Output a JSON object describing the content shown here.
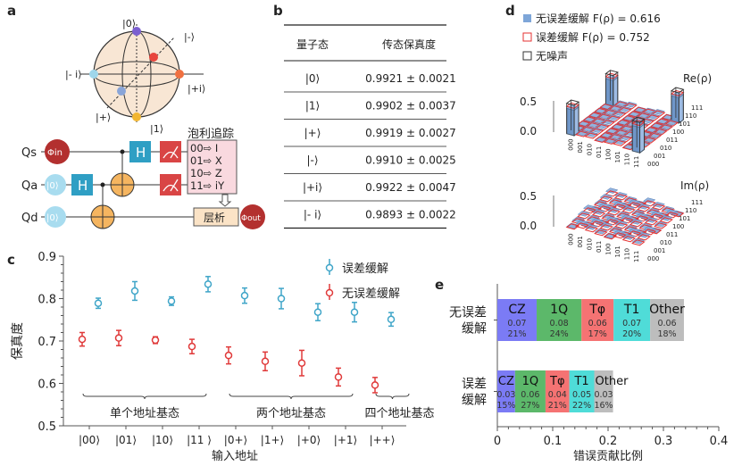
{
  "panels": {
    "a": "a",
    "b": "b",
    "c": "c",
    "d": "d",
    "e": "e"
  },
  "bloch": {
    "labels": {
      "zero": "|0⟩",
      "one": "|1⟩",
      "plus": "|+⟩",
      "minus": "|-⟩",
      "plus_i": "|+i⟩",
      "minus_i": "|- i⟩"
    },
    "colors": {
      "zero": "#7b5fd0",
      "one": "#f2b632",
      "plus": "#8aa5d8",
      "minus": "#e8453c",
      "plus_i": "#f07040",
      "minus_i": "#9fd6ea",
      "sphere": "#f8e6d4"
    }
  },
  "circuit": {
    "qubits": [
      "Qs",
      "Qa",
      "Qd"
    ],
    "phi_in": "Φin",
    "phi_out": "Φout",
    "ket0": "|0⟩",
    "hadamard": "H",
    "pauli_title": "泡利追踪",
    "pauli_rules": [
      "00⇨  I",
      "01⇨  X",
      "10⇨  Z",
      "11⇨  iY"
    ],
    "tomography": "层析",
    "colors": {
      "h": "#2f9fc4",
      "meas": "#d94545",
      "phi": "#b3302f",
      "ket": "#a8dcef",
      "cnot": "#f5b560",
      "pauli": "#f9d9df",
      "tomo": "#fbe3c6"
    }
  },
  "table": {
    "headers": [
      "量子态",
      "传态保真度"
    ],
    "rows": [
      [
        "|0⟩",
        "0.9921 ± 0.0021"
      ],
      [
        "|1⟩",
        "0.9902 ± 0.0037"
      ],
      [
        "|+⟩",
        "0.9919 ± 0.0027"
      ],
      [
        "|-⟩",
        "0.9910 ± 0.0025"
      ],
      [
        "|+i⟩",
        "0.9922 ± 0.0047"
      ],
      [
        "|- i⟩",
        "0.9893 ± 0.0022"
      ]
    ]
  },
  "density": {
    "legend": [
      "无误差缓解 F(ρ) = 0.616",
      "误差缓解  F(ρ) = 0.752",
      "无噪声"
    ],
    "re_label": "Re(ρ)",
    "im_label": "Im(ρ)",
    "zticks": [
      "0.5",
      "0.0"
    ],
    "basis": [
      "000",
      "001",
      "010",
      "011",
      "100",
      "101",
      "110",
      "111"
    ],
    "colors": {
      "unmitigated": "#7ea6d8",
      "mitigated": "#e53030",
      "ideal": "#333333"
    }
  },
  "chart_data": [
    {
      "type": "scatter",
      "ylabel": "保真度",
      "xlabel": "输入地址",
      "ylim": [
        0.5,
        0.9
      ],
      "yticks": [
        0.5,
        0.6,
        0.7,
        0.8,
        0.9
      ],
      "categories": [
        "|00⟩",
        "|01⟩",
        "|10⟩",
        "|11 ⟩",
        "|0+⟩",
        "|1+⟩",
        "|+0⟩",
        "|+1⟩",
        "|++⟩"
      ],
      "groups": [
        {
          "label": "单个地址基态",
          "range": [
            0,
            3
          ]
        },
        {
          "label": "两个地址基态",
          "range": [
            4,
            7
          ]
        },
        {
          "label": "四个地址基态",
          "range": [
            8,
            8
          ]
        }
      ],
      "series": [
        {
          "name": "误差缓解",
          "color": "#3fa5c8",
          "values": [
            0.789,
            0.818,
            0.794,
            0.834,
            0.807,
            0.8,
            0.768,
            0.768,
            0.751
          ],
          "errors": [
            0.012,
            0.022,
            0.01,
            0.018,
            0.018,
            0.024,
            0.02,
            0.023,
            0.016
          ]
        },
        {
          "name": "无误差缓解",
          "color": "#e03a3a",
          "values": [
            0.704,
            0.707,
            0.702,
            0.687,
            0.666,
            0.652,
            0.648,
            0.615,
            0.596
          ],
          "errors": [
            0.016,
            0.018,
            0.008,
            0.017,
            0.02,
            0.022,
            0.03,
            0.021,
            0.018
          ]
        }
      ]
    },
    {
      "type": "bar",
      "orientation": "horizontal",
      "stacked": true,
      "xlabel": "错误贡献比例",
      "xlim": [
        0,
        0.4
      ],
      "xticks": [
        "0",
        "0.1",
        "0.2",
        "0.3",
        "0.4"
      ],
      "categories": [
        "无误差缓解",
        "误差缓解"
      ],
      "segments": [
        "CZ",
        "1Q",
        "Tφ",
        "T1",
        "Other"
      ],
      "colors": [
        "#7b7bf5",
        "#5cb86a",
        "#f57373",
        "#4fdcd8",
        "#bdbdbd"
      ],
      "values": [
        [
          0.07,
          0.08,
          0.06,
          0.07,
          0.06
        ],
        [
          0.03,
          0.06,
          0.04,
          0.05,
          0.03
        ]
      ],
      "values_exact": [
        [
          0.071,
          0.081,
          0.058,
          0.066,
          0.061
        ],
        [
          0.032,
          0.055,
          0.043,
          0.045,
          0.034
        ]
      ],
      "percent": [
        [
          "21%",
          "24%",
          "17%",
          "20%",
          "18%"
        ],
        [
          "15%",
          "27%",
          "21%",
          "22%",
          "16%"
        ]
      ],
      "value_labels": [
        [
          "0.07",
          "0.08",
          "0.06",
          "0.07",
          "0.06"
        ],
        [
          "0.03",
          "0.06",
          "0.04",
          "0.05",
          "0.03"
        ]
      ]
    }
  ]
}
